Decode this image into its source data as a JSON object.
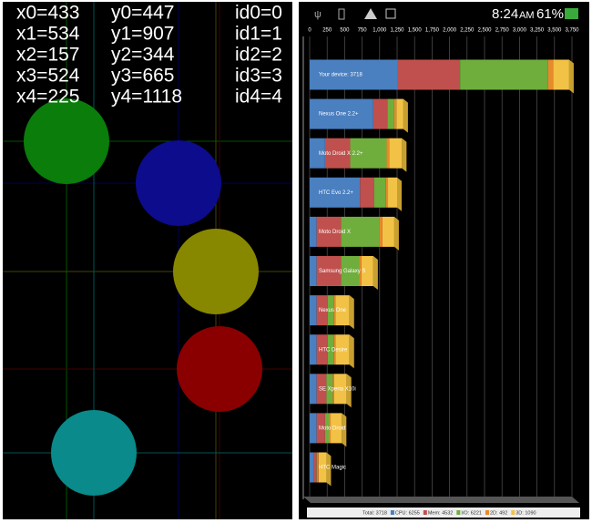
{
  "touch_panel": {
    "rows": [
      [
        "x0=433",
        "y0=447",
        "id0=0"
      ],
      [
        "x1=534",
        "y1=907",
        "id1=1"
      ],
      [
        "x2=157",
        "y2=344",
        "id2=2"
      ],
      [
        "x3=524",
        "y3=665",
        "id3=3"
      ],
      [
        "x4=225",
        "y4=1118",
        "id4=4"
      ]
    ]
  },
  "status_bar": {
    "time": "8:24",
    "ampm": "AM",
    "battery": "61%"
  },
  "benchmark": {
    "xlim": [
      0,
      3750
    ],
    "xticks": [
      0,
      250,
      500,
      750,
      {
        "value": 1000,
        "label": "1,000"
      },
      {
        "value": 1250,
        "label": "1,250"
      },
      {
        "value": 1500,
        "label": "1,500"
      },
      {
        "value": 1750,
        "label": "1,750"
      },
      {
        "value": 2000,
        "label": "2,000"
      },
      {
        "value": 2250,
        "label": "2,250"
      },
      {
        "value": 2500,
        "label": "2,500"
      },
      {
        "value": 2750,
        "label": "2,750"
      },
      {
        "value": 3000,
        "label": "3,000"
      },
      {
        "value": 3250,
        "label": "3,250"
      },
      {
        "value": 3500,
        "label": "3,500"
      },
      {
        "value": 3750,
        "label": "3,750"
      }
    ],
    "segment_colors": [
      "#4a7fc0",
      "#c0504d",
      "#6fae3c",
      "#e8892a",
      "#f2c246"
    ],
    "devices": [
      {
        "name": "Your device: 3718",
        "values": [
          1250,
          900,
          1260,
          70,
          230
        ]
      },
      {
        "name": "Nexus One 2.2+",
        "values": [
          910,
          200,
          100,
          30,
          100
        ]
      },
      {
        "name": "Moto Droid X 2.2+",
        "values": [
          220,
          360,
          520,
          40,
          180
        ]
      },
      {
        "name": "HTC Evo 2.2+",
        "values": [
          720,
          200,
          170,
          30,
          130
        ]
      },
      {
        "name": "Moto Droid X",
        "values": [
          100,
          350,
          550,
          40,
          170
        ]
      },
      {
        "name": "Samsung Galaxy S",
        "values": [
          100,
          350,
          260,
          30,
          170
        ]
      },
      {
        "name": "Nexus One",
        "values": [
          100,
          160,
          90,
          20,
          200
        ]
      },
      {
        "name": "HTC Desire",
        "values": [
          100,
          160,
          90,
          20,
          200
        ]
      },
      {
        "name": "SE Xperia X10i",
        "values": [
          100,
          140,
          90,
          20,
          180
        ]
      },
      {
        "name": "Moto Droid",
        "values": [
          100,
          120,
          60,
          20,
          160
        ]
      },
      {
        "name": "HTC Magic",
        "values": [
          60,
          40,
          20,
          10,
          110
        ]
      }
    ],
    "legend": [
      "Total: 3718",
      "CPU: 6255",
      "Mem: 4532",
      "I/O: 6221",
      "2D: 492",
      "3D: 1090"
    ]
  }
}
